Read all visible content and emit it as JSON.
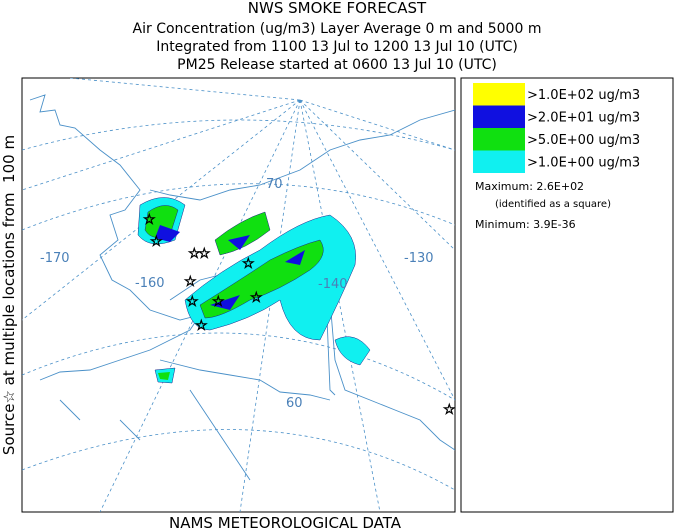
{
  "header": {
    "title": "NWS SMOKE FORECAST",
    "lines": [
      "Air Concentration (ug/m3) Layer Average    0 m and  5000 m",
      "Integrated from 1100 13 Jul to 1200 13 Jul 10 (UTC)",
      "PM25 Release started at 0600 13 Jul 10 (UTC)"
    ]
  },
  "side_label": "Source☆ at multiple locations from  100 m",
  "legend": {
    "items": [
      {
        "label": ">1.0E+02 ug/m3",
        "color": "#ffff00"
      },
      {
        "label": ">2.0E+01 ug/m3",
        "color": "#1010e0"
      },
      {
        "label": ">5.0E+00 ug/m3",
        "color": "#10e010"
      },
      {
        "label": ">1.0E+00 ug/m3",
        "color": "#10f0f0"
      }
    ]
  },
  "stats": {
    "maximum": "Maximum: 2.6E+02",
    "note": "(identified as a square)",
    "minimum": "Minimum: 3.9E-36"
  },
  "map": {
    "labels": [
      "-170",
      "-160",
      "-140",
      "-130",
      "70",
      "60"
    ]
  },
  "footer": "NAMS METEOROLOGICAL DATA"
}
